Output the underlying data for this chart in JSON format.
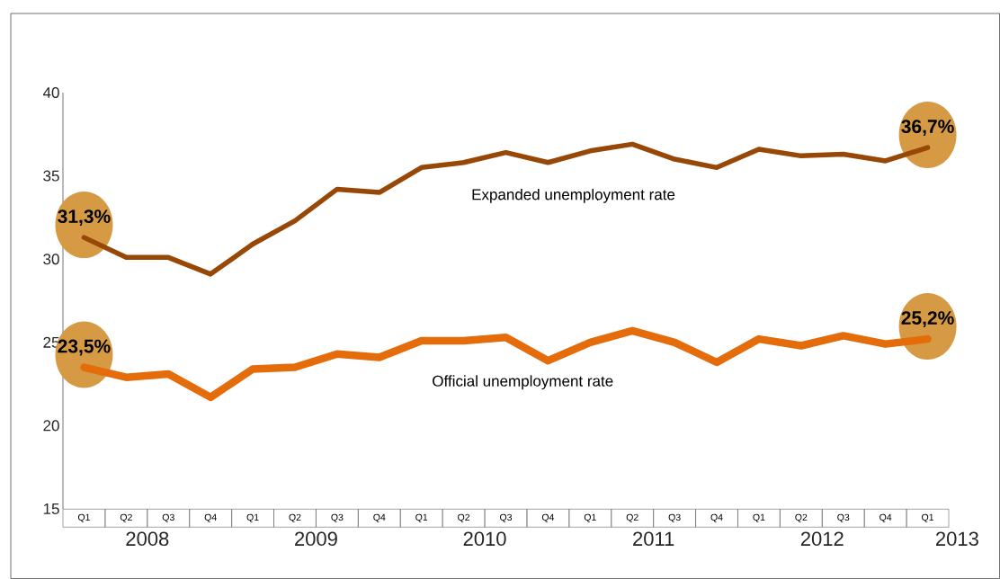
{
  "chart_data": {
    "type": "line",
    "categories": [
      "Q1",
      "Q2",
      "Q3",
      "Q4",
      "Q1",
      "Q2",
      "Q3",
      "Q4",
      "Q1",
      "Q2",
      "Q3",
      "Q4",
      "Q1",
      "Q2",
      "Q3",
      "Q4",
      "Q1",
      "Q2",
      "Q3",
      "Q4",
      "Q1"
    ],
    "annotations": [
      "2008",
      "2009",
      "2010",
      "2011",
      "2012",
      "2013"
    ],
    "ylim": [
      15,
      40
    ],
    "yticks": [
      15,
      20,
      25,
      30,
      35,
      40
    ],
    "grid": false,
    "legend": false,
    "series": [
      {
        "name": "Expanded unemployment rate",
        "color": "#974706",
        "values": [
          31.3,
          30.1,
          30.1,
          29.1,
          30.9,
          32.3,
          34.2,
          34.0,
          35.5,
          35.8,
          36.4,
          35.8,
          36.5,
          36.9,
          36.0,
          35.5,
          36.6,
          36.2,
          36.3,
          35.9,
          36.7
        ],
        "value_labels": [
          "31,3%",
          null,
          null,
          null,
          null,
          null,
          null,
          null,
          null,
          null,
          null,
          null,
          null,
          null,
          null,
          null,
          null,
          null,
          null,
          null,
          "36,7%"
        ]
      },
      {
        "name": "Official unemployment rate",
        "color": "#e46c0a",
        "values": [
          23.5,
          22.9,
          23.1,
          21.7,
          23.4,
          23.5,
          24.3,
          24.1,
          25.1,
          25.1,
          25.3,
          23.9,
          25.0,
          25.7,
          25.0,
          23.8,
          25.2,
          24.8,
          25.4,
          24.9,
          25.2
        ],
        "value_labels": [
          "23,5%",
          null,
          null,
          null,
          null,
          null,
          null,
          null,
          null,
          null,
          null,
          null,
          null,
          null,
          null,
          null,
          null,
          null,
          null,
          null,
          "25,2%"
        ]
      }
    ]
  }
}
